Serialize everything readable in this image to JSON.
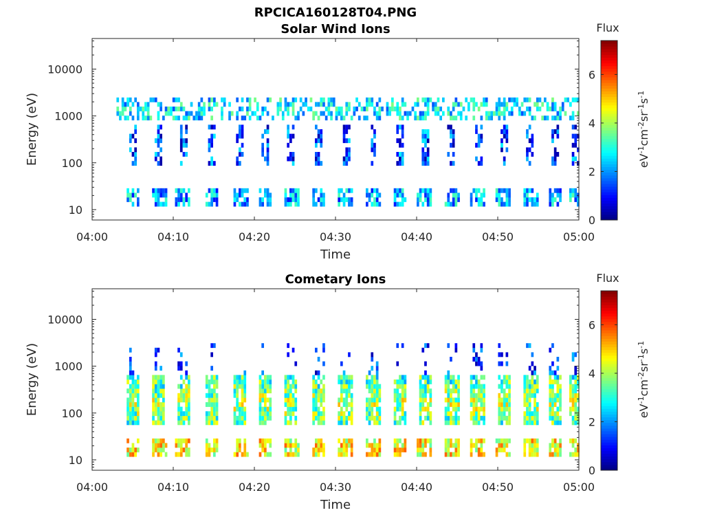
{
  "figure_title": "RPCICA160128T04.PNG",
  "colorbar": {
    "label": "Flux",
    "unit_prefix": "eV",
    "unit_sup1": "-1",
    "unit_mid1": "cm",
    "unit_sup2": "-2",
    "unit_mid2": "sr",
    "unit_sup3": "-1",
    "unit_mid3": "s",
    "unit_sup4": "-1",
    "range": [
      0,
      7.4
    ],
    "ticks": [
      0,
      2,
      4,
      6
    ],
    "colormap": "jet"
  },
  "chart_data": [
    {
      "type": "heatmap",
      "title": "Solar Wind Ions",
      "xlabel": "Time",
      "ylabel": "Energy (eV)",
      "yscale": "log",
      "ylim": [
        6,
        45000
      ],
      "yticks": [
        10,
        100,
        1000,
        10000
      ],
      "ytick_labels": [
        "10",
        "100",
        "1000",
        "10000"
      ],
      "xlim": [
        "04:00",
        "05:00"
      ],
      "xticks": [
        "04:00",
        "04:10",
        "04:20",
        "04:30",
        "04:40",
        "04:50",
        "05:00"
      ],
      "data_start": "04:03",
      "data_end": "05:00",
      "sweep_times": [
        "04:04.9",
        "04:08.1",
        "04:11.1",
        "04:14.6",
        "04:18.1",
        "04:21.2",
        "04:24.4",
        "04:27.8",
        "04:31.1",
        "04:34.5",
        "04:37.8",
        "04:40.9",
        "04:44.2",
        "04:47.4",
        "04:50.6",
        "04:53.9",
        "04:56.9",
        "04:59.5"
      ],
      "bands": [
        {
          "name": "high",
          "emin": 800,
          "emax": 2500,
          "typical_flux": 2.6
        },
        {
          "name": "mid",
          "emin": 80,
          "emax": 600,
          "typical_flux": 1.4
        },
        {
          "name": "low",
          "emin": 12,
          "emax": 30,
          "typical_flux": 2.2
        }
      ]
    },
    {
      "type": "heatmap",
      "title": "Cometary Ions",
      "xlabel": "Time",
      "ylabel": "Energy (eV)",
      "yscale": "log",
      "ylim": [
        6,
        45000
      ],
      "yticks": [
        10,
        100,
        1000,
        10000
      ],
      "ytick_labels": [
        "10",
        "100",
        "1000",
        "10000"
      ],
      "xlim": [
        "04:00",
        "05:00"
      ],
      "xticks": [
        "04:00",
        "04:10",
        "04:20",
        "04:30",
        "04:40",
        "04:50",
        "05:00"
      ],
      "data_start": "04:03",
      "data_end": "05:00",
      "sweep_times": [
        "04:04.9",
        "04:08.1",
        "04:11.1",
        "04:14.6",
        "04:18.1",
        "04:21.2",
        "04:24.4",
        "04:27.8",
        "04:31.1",
        "04:34.5",
        "04:37.8",
        "04:40.9",
        "04:44.2",
        "04:47.4",
        "04:50.6",
        "04:53.9",
        "04:56.9",
        "04:59.5"
      ],
      "bands": [
        {
          "name": "high",
          "emin": 600,
          "emax": 3000,
          "typical_flux": 1.3
        },
        {
          "name": "mid",
          "emin": 60,
          "emax": 700,
          "typical_flux": 4.0
        },
        {
          "name": "low",
          "emin": 12,
          "emax": 30,
          "typical_flux": 4.6
        }
      ]
    }
  ]
}
